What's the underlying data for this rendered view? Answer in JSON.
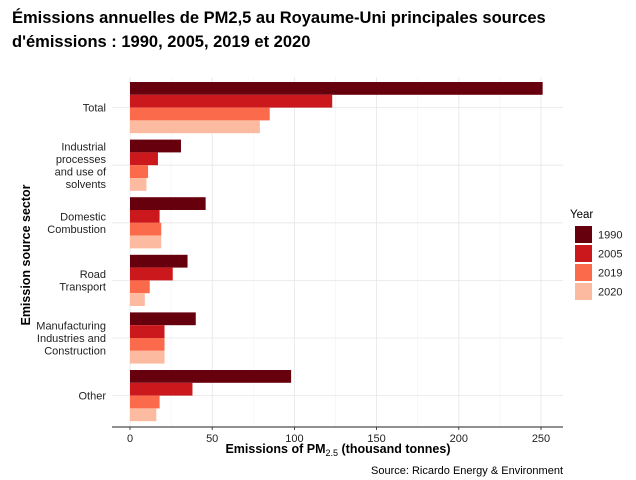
{
  "title_line1": "Émissions annuelles de PM2,5 au Royaume-Uni principales sources",
  "title_line2": "d'émissions : 1990, 2005, 2019 et 2020",
  "chart_data": {
    "type": "bar",
    "orientation": "horizontal",
    "categories": [
      [
        "Total"
      ],
      [
        "Industrial",
        "processes",
        "and use of",
        "solvents"
      ],
      [
        "Domestic",
        "Combustion"
      ],
      [
        "Road",
        "Transport"
      ],
      [
        "Manufacturing",
        "Industries and",
        "Construction"
      ],
      [
        "Other"
      ]
    ],
    "series": [
      {
        "name": "1990",
        "color": "#67000d",
        "values": [
          251,
          31,
          46,
          35,
          40,
          98
        ]
      },
      {
        "name": "2005",
        "color": "#cb181d",
        "values": [
          123,
          17,
          18,
          26,
          21,
          38
        ]
      },
      {
        "name": "2019",
        "color": "#fb6a4a",
        "values": [
          85,
          11,
          19,
          12,
          21,
          18
        ]
      },
      {
        "name": "2020",
        "color": "#fcbba1",
        "values": [
          79,
          10,
          19,
          9,
          21,
          16
        ]
      }
    ],
    "xlabel_main": "Emissions of PM",
    "xlabel_sub": "2.5",
    "xlabel_unit": " (thousand tonnes)",
    "ylabel": "Emission source sector",
    "xticks": [
      "0",
      "50",
      "100",
      "150",
      "200",
      "250"
    ],
    "xtick_values": [
      0,
      50,
      100,
      150,
      200,
      250
    ],
    "xlim": [
      0,
      260
    ],
    "legend_title": "Year",
    "legend_position": "right",
    "grid": true,
    "source": "Source: Ricardo Energy & Environment"
  }
}
